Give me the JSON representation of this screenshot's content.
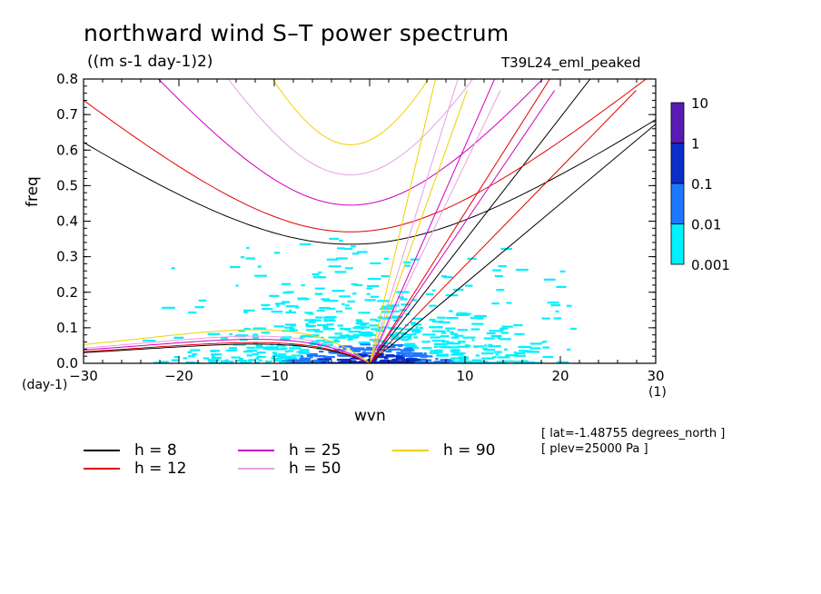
{
  "chart_data": {
    "type": "line",
    "title": "northward wind S–T power spectrum",
    "units_label": "((m s-1 day-1)2)",
    "model_label": "T39L24_eml_peaked",
    "xlabel": "wvn",
    "ylabel": "freq",
    "y_unit": "(day-1)",
    "x_unit": "(1)",
    "xlim": [
      -30,
      30
    ],
    "ylim": [
      0,
      0.8
    ],
    "x_ticks": [
      -30,
      -20,
      -10,
      0,
      10,
      20,
      30
    ],
    "x_tick_labels": [
      "−30",
      "−20",
      "−10",
      "0",
      "10",
      "20",
      "30"
    ],
    "y_ticks": [
      0.0,
      0.1,
      0.2,
      0.3,
      0.4,
      0.5,
      0.6,
      0.7,
      0.8
    ],
    "y_tick_labels": [
      "0.0",
      "0.1",
      "0.2",
      "0.3",
      "0.4",
      "0.5",
      "0.6",
      "0.7",
      "0.8"
    ],
    "colorbar": {
      "levels": [
        "10",
        "1",
        "0.1",
        "0.01",
        "0.001"
      ],
      "colors": [
        "#5a1ab4",
        "#0a2ec8",
        "#1e78ff",
        "#00f0ff"
      ]
    },
    "dispersion_curves": [
      {
        "h": 8,
        "color": "#000000",
        "inertia_gravity_min": 0.335,
        "kelvin_slope": 0.0187,
        "rossby_peak": 0.06
      },
      {
        "h": 12,
        "color": "#e00000",
        "inertia_gravity_min": 0.37,
        "kelvin_slope": 0.0229,
        "rossby_peak": 0.065
      },
      {
        "h": 25,
        "color": "#d000c0",
        "inertia_gravity_min": 0.445,
        "kelvin_slope": 0.033,
        "rossby_peak": 0.075
      },
      {
        "h": 50,
        "color": "#e8a0e0",
        "inertia_gravity_min": 0.53,
        "kelvin_slope": 0.0467,
        "rossby_peak": 0.085
      },
      {
        "h": 90,
        "color": "#f0d000",
        "inertia_gravity_min": 0.615,
        "kelvin_slope": 0.0626,
        "rossby_peak": 0.105
      }
    ],
    "legend": [
      {
        "label": "h =  8",
        "color": "#000000"
      },
      {
        "label": "h = 12",
        "color": "#e00000"
      },
      {
        "label": "h = 25",
        "color": "#d000c0"
      },
      {
        "label": "h = 50",
        "color": "#e8a0e0"
      },
      {
        "label": "h = 90",
        "color": "#f0d000"
      }
    ]
  },
  "info": {
    "lat": "[ lat=-1.48755 degrees_north ]",
    "plev": "[ plev=25000 Pa ]"
  }
}
